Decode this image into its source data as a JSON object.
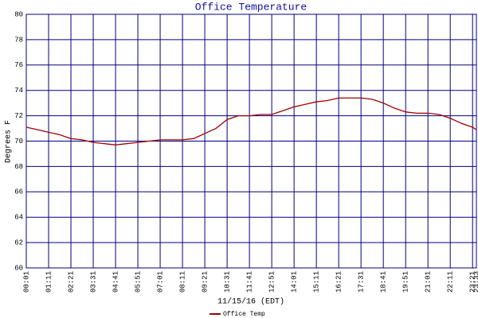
{
  "chart_data": {
    "type": "line",
    "title": "Office Temperature",
    "xlabel": "11/15/16 (EDT)",
    "ylabel": "Degrees F",
    "x": [
      1,
      36,
      71,
      106,
      141,
      176,
      211,
      246,
      281,
      316,
      351,
      386,
      421,
      456,
      491,
      526,
      561,
      596,
      631,
      666,
      701,
      736,
      771,
      806,
      841,
      876,
      911,
      946,
      981,
      1016,
      1051,
      1086,
      1121,
      1156,
      1191,
      1226,
      1261,
      1296,
      1331,
      1366,
      1401,
      1413
    ],
    "series": [
      {
        "name": "Office Temp",
        "color": "#a00000",
        "values": [
          71.1,
          70.9,
          70.7,
          70.5,
          70.2,
          70.1,
          69.9,
          69.8,
          69.7,
          69.8,
          69.9,
          70.0,
          70.1,
          70.1,
          70.1,
          70.2,
          70.6,
          71.0,
          71.7,
          72.0,
          72.0,
          72.1,
          72.1,
          72.4,
          72.7,
          72.9,
          73.1,
          73.2,
          73.4,
          73.4,
          73.4,
          73.3,
          73.0,
          72.6,
          72.3,
          72.2,
          72.2,
          72.1,
          71.8,
          71.4,
          71.1,
          70.9
        ]
      }
    ],
    "xlim": [
      1,
      1413
    ],
    "xticks": [
      {
        "value": 1,
        "label": "00:01"
      },
      {
        "value": 71,
        "label": "01:11"
      },
      {
        "value": 141,
        "label": "02:21"
      },
      {
        "value": 211,
        "label": "03:31"
      },
      {
        "value": 281,
        "label": "04:41"
      },
      {
        "value": 351,
        "label": "05:51"
      },
      {
        "value": 421,
        "label": "07:01"
      },
      {
        "value": 491,
        "label": "08:11"
      },
      {
        "value": 561,
        "label": "09:21"
      },
      {
        "value": 631,
        "label": "10:31"
      },
      {
        "value": 701,
        "label": "11:41"
      },
      {
        "value": 771,
        "label": "12:51"
      },
      {
        "value": 841,
        "label": "14:01"
      },
      {
        "value": 911,
        "label": "15:11"
      },
      {
        "value": 981,
        "label": "16:21"
      },
      {
        "value": 1051,
        "label": "17:31"
      },
      {
        "value": 1121,
        "label": "18:41"
      },
      {
        "value": 1191,
        "label": "19:51"
      },
      {
        "value": 1261,
        "label": "21:01"
      },
      {
        "value": 1331,
        "label": "22:11"
      },
      {
        "value": 1401,
        "label": "23:21"
      },
      {
        "value": 1413,
        "label": "23:33"
      }
    ],
    "ylim": [
      60,
      80
    ],
    "yticks": [
      60,
      62,
      64,
      66,
      68,
      70,
      72,
      74,
      76,
      78,
      80
    ],
    "grid": true,
    "legend": "bottom"
  }
}
